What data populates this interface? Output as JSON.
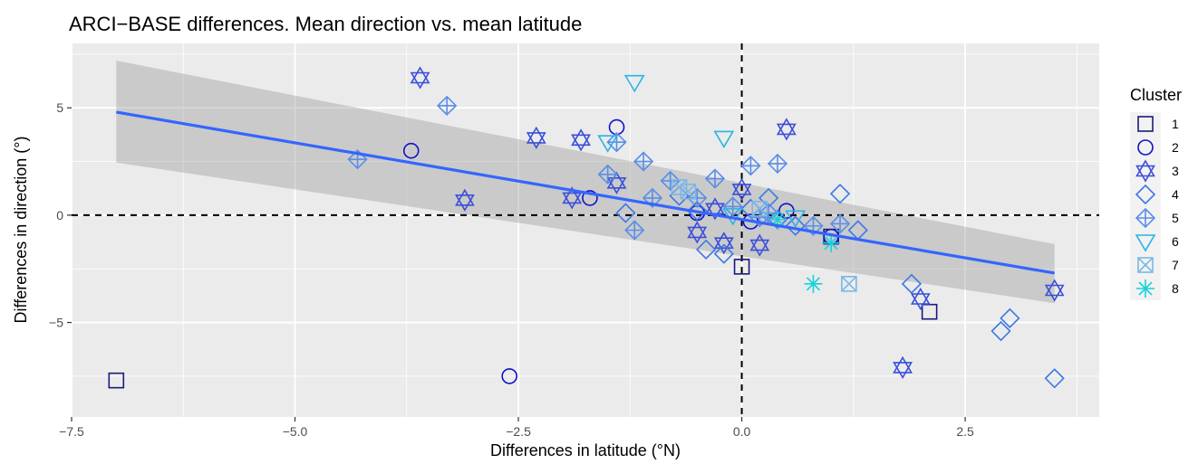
{
  "chart_data": {
    "type": "scatter",
    "title": "ARCI−BASE differences. Mean direction vs. mean latitude",
    "xlabel": "Differences in latitude (°N)",
    "ylabel": "Differences in direction (°)",
    "xlim": [
      -7.5,
      4.0
    ],
    "ylim": [
      -9.4,
      8.0
    ],
    "x_ticks": [
      -7.5,
      -5.0,
      -2.5,
      0.0,
      2.5
    ],
    "x_tick_labels": [
      "−7.5",
      "−5.0",
      "−2.5",
      "0.0",
      "2.5"
    ],
    "y_ticks": [
      -5,
      0,
      5
    ],
    "y_tick_labels": [
      "−5",
      "0",
      "5"
    ],
    "grid": true,
    "reference_lines": {
      "x": 0,
      "y": 0,
      "style": "dashed"
    },
    "legend": {
      "title": "Cluster",
      "position": "right",
      "entries": [
        {
          "label": "1",
          "marker": "square",
          "color": "#1a1a7e"
        },
        {
          "label": "2",
          "marker": "circle",
          "color": "#1111c8"
        },
        {
          "label": "3",
          "marker": "star-of-david",
          "color": "#3b4fd8"
        },
        {
          "label": "4",
          "marker": "diamond",
          "color": "#3c78e6"
        },
        {
          "label": "5",
          "marker": "diamond-plus",
          "color": "#5a8ee8"
        },
        {
          "label": "6",
          "marker": "triangle-down",
          "color": "#28b4e6"
        },
        {
          "label": "7",
          "marker": "square-x",
          "color": "#7ab8e6"
        },
        {
          "label": "8",
          "marker": "asterisk",
          "color": "#14d2dc"
        }
      ]
    },
    "regression": {
      "x": [
        -7.0,
        3.5
      ],
      "y": [
        4.8,
        -2.7
      ],
      "band_upper": [
        7.2,
        -1.35
      ],
      "band_lower": [
        2.45,
        -4.1
      ],
      "color": "#3366ff"
    },
    "series": [
      {
        "name": "1",
        "points": [
          [
            -7.0,
            -7.7
          ],
          [
            0.0,
            -2.4
          ],
          [
            2.1,
            -4.5
          ],
          [
            1.0,
            -1.0
          ]
        ]
      },
      {
        "name": "2",
        "points": [
          [
            -3.7,
            3.0
          ],
          [
            -2.6,
            -7.5
          ],
          [
            -1.4,
            4.1
          ],
          [
            -1.7,
            0.8
          ],
          [
            -0.5,
            0.1
          ],
          [
            0.1,
            -0.3
          ],
          [
            0.5,
            0.2
          ],
          [
            1.0,
            -1.0
          ]
        ]
      },
      {
        "name": "3",
        "points": [
          [
            -3.6,
            6.4
          ],
          [
            -3.1,
            0.7
          ],
          [
            -2.3,
            3.6
          ],
          [
            -1.9,
            0.8
          ],
          [
            -1.8,
            3.5
          ],
          [
            -1.4,
            1.5
          ],
          [
            -0.5,
            -0.8
          ],
          [
            -0.2,
            -1.3
          ],
          [
            0.0,
            1.2
          ],
          [
            0.2,
            -1.4
          ],
          [
            0.5,
            4.0
          ],
          [
            1.8,
            -7.1
          ],
          [
            2.0,
            -3.9
          ],
          [
            3.5,
            -3.5
          ],
          [
            -0.3,
            0.3
          ]
        ]
      },
      {
        "name": "4",
        "points": [
          [
            -1.3,
            0.1
          ],
          [
            -0.7,
            0.9
          ],
          [
            -0.5,
            0.2
          ],
          [
            -0.4,
            -1.6
          ],
          [
            -0.2,
            -1.8
          ],
          [
            0.1,
            0.3
          ],
          [
            0.3,
            0.8
          ],
          [
            0.6,
            -0.5
          ],
          [
            1.1,
            1.0
          ],
          [
            1.3,
            -0.7
          ],
          [
            1.9,
            -3.2
          ],
          [
            2.9,
            -5.4
          ],
          [
            3.0,
            -4.8
          ],
          [
            3.5,
            -7.6
          ],
          [
            0.4,
            -0.2
          ]
        ]
      },
      {
        "name": "5",
        "points": [
          [
            -4.3,
            2.6
          ],
          [
            -3.3,
            5.1
          ],
          [
            -1.5,
            1.9
          ],
          [
            -1.4,
            3.4
          ],
          [
            -1.1,
            2.5
          ],
          [
            -1.2,
            -0.7
          ],
          [
            -1.0,
            0.8
          ],
          [
            -0.8,
            1.6
          ],
          [
            -0.5,
            0.8
          ],
          [
            -0.3,
            1.7
          ],
          [
            0.1,
            2.3
          ],
          [
            0.4,
            2.4
          ],
          [
            0.3,
            0.1
          ],
          [
            0.8,
            -0.5
          ],
          [
            1.1,
            -0.4
          ],
          [
            0.2,
            -0.1
          ],
          [
            -0.1,
            0.4
          ]
        ]
      },
      {
        "name": "6",
        "points": [
          [
            -1.2,
            6.2
          ],
          [
            -0.2,
            3.6
          ],
          [
            -1.5,
            3.4
          ],
          [
            0.6,
            -0.1
          ],
          [
            -0.1,
            0.0
          ]
        ]
      },
      {
        "name": "7",
        "points": [
          [
            1.2,
            -3.2
          ],
          [
            -0.6,
            1.1
          ],
          [
            -0.7,
            1.3
          ],
          [
            0.2,
            0.3
          ]
        ]
      },
      {
        "name": "8",
        "points": [
          [
            0.8,
            -3.2
          ],
          [
            1.0,
            -1.3
          ],
          [
            0.4,
            -0.2
          ]
        ]
      }
    ]
  }
}
